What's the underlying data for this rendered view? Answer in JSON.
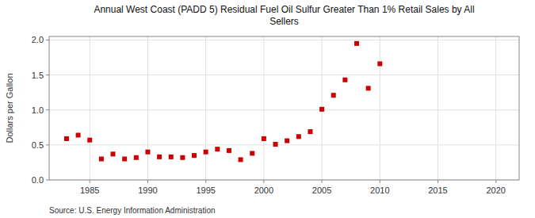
{
  "chart_data": {
    "type": "scatter",
    "title": "Annual West Coast (PADD 5) Residual Fuel Oil Sulfur Greater Than 1% Retail Sales by All\nSellers",
    "ylabel": "Dollars per Gallon",
    "source": "Source: U.S. Energy Information Administration",
    "x": [
      1983,
      1984,
      1985,
      1986,
      1987,
      1988,
      1989,
      1990,
      1991,
      1992,
      1993,
      1994,
      1995,
      1996,
      1997,
      1998,
      1999,
      2000,
      2001,
      2002,
      2003,
      2004,
      2005,
      2006,
      2007,
      2008,
      2009,
      2010
    ],
    "values": [
      0.59,
      0.64,
      0.57,
      0.3,
      0.37,
      0.3,
      0.32,
      0.4,
      0.33,
      0.33,
      0.32,
      0.35,
      0.4,
      0.44,
      0.42,
      0.29,
      0.38,
      0.59,
      0.51,
      0.56,
      0.62,
      0.69,
      1.01,
      1.21,
      1.43,
      1.95,
      1.31,
      1.66
    ],
    "color": "#cc0000",
    "marker": "square",
    "xlim": [
      1981.5,
      2022
    ],
    "ylim": [
      0.0,
      2.05
    ],
    "xticks": [
      1985,
      1990,
      1995,
      2000,
      2005,
      2010,
      2015,
      2020
    ],
    "yticks": [
      {
        "value": 0.0,
        "label": "0.0"
      },
      0.5,
      {
        "value": 1.0,
        "label": "1.0"
      },
      1.5,
      {
        "value": 2.0,
        "label": "2.0"
      }
    ],
    "grid": true
  }
}
